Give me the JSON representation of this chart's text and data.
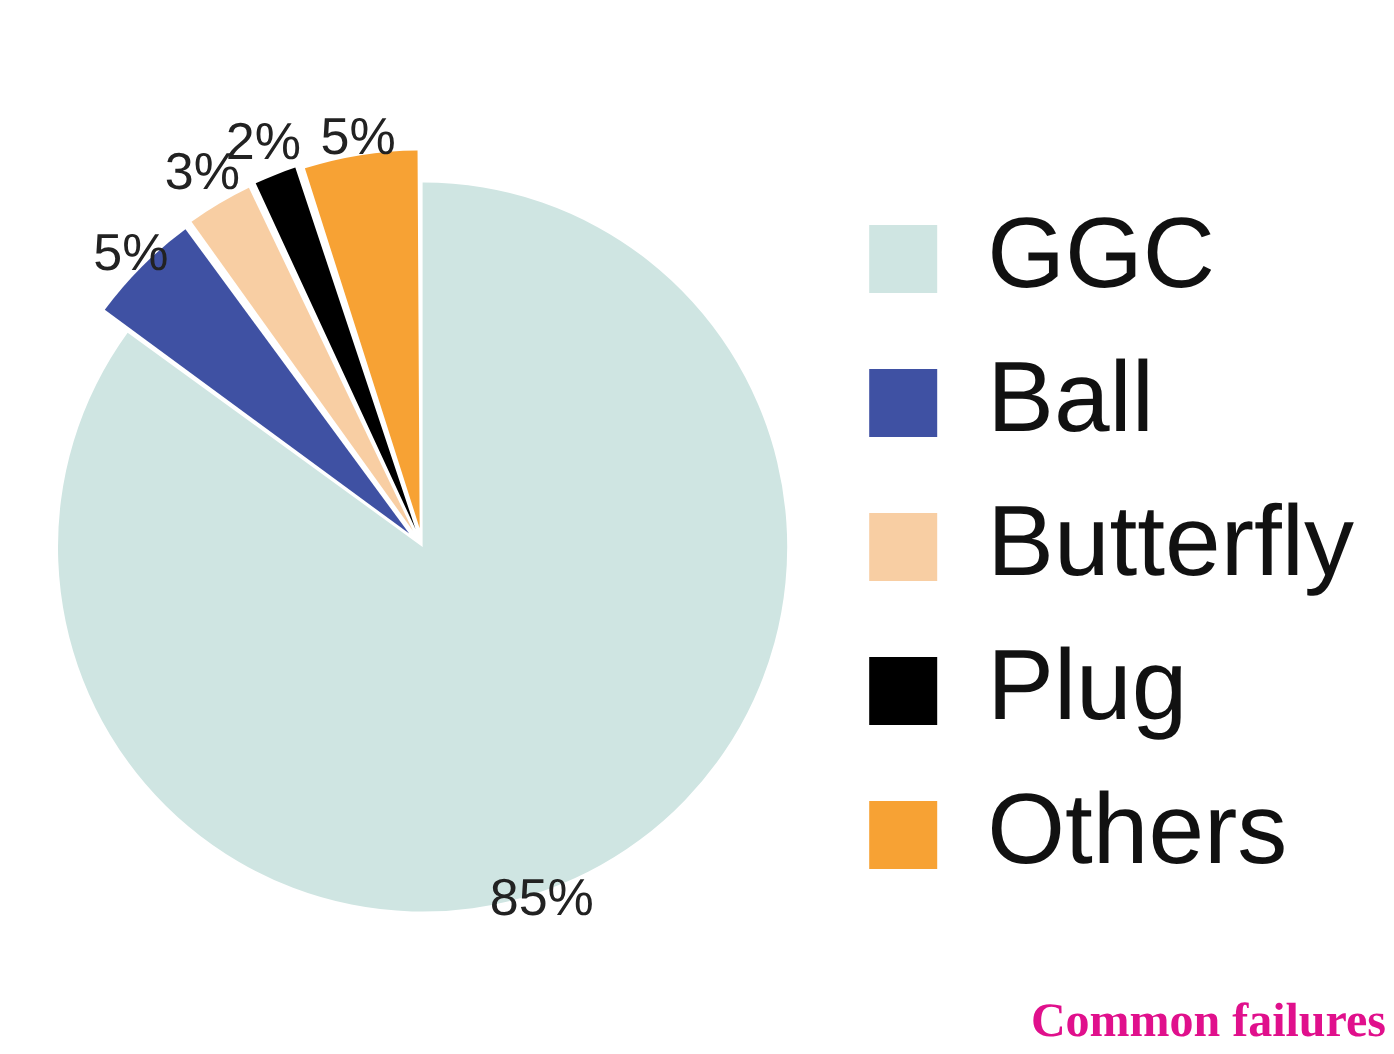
{
  "chart_data": {
    "type": "pie",
    "categories": [
      "GGC",
      "Ball",
      "Butterfly",
      "Plug",
      "Others"
    ],
    "values": [
      85,
      5,
      3,
      2,
      5
    ],
    "colors": [
      "#cfe5e2",
      "#3f51a3",
      "#f8cea3",
      "#000000",
      "#f7a234"
    ],
    "value_labels": [
      "85%",
      "5%",
      "3%",
      "2%",
      "5%"
    ],
    "legend": "right",
    "annotations": [
      "Common failures"
    ]
  }
}
